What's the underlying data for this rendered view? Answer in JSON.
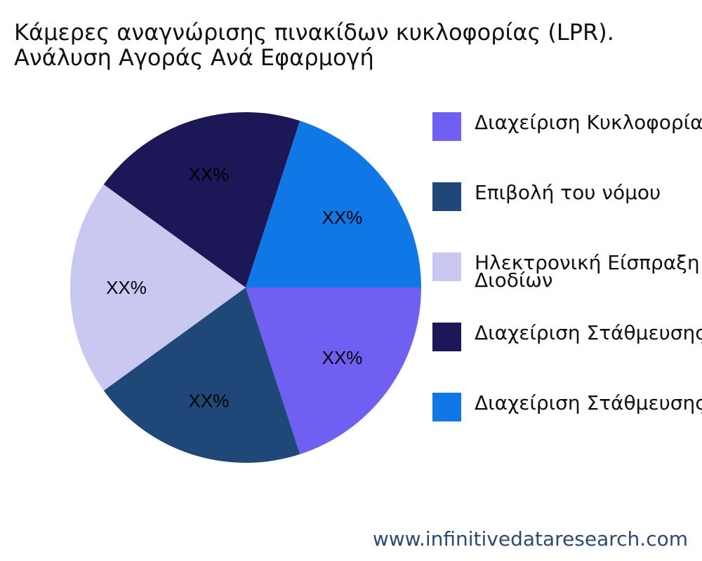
{
  "chart_data": {
    "type": "pie",
    "title": "Κάμερες αναγνώρισης πινακίδων κυκλοφορίας (LPR). Ανάλυση Αγοράς Ανά Εφαρμογή",
    "title_lines": [
      "Κάμερες αναγνώρισης πινακίδων κυκλοφορίας (LPR).",
      "Ανάλυση Αγοράς Ανά Εφαρμογή"
    ],
    "categories": [
      "Διαχείριση Κυκλοφορίας",
      "Επιβολή του νόμου",
      "Ηλεκτρονική Είσπραξη Διοδίων",
      "Διαχείριση Στάθμευσης",
      "Διαχείριση Στάθμευσης"
    ],
    "values": [
      20,
      20,
      20,
      20,
      20
    ],
    "slice_labels": [
      "XX%",
      "XX%",
      "XX%",
      "XX%",
      "XX%"
    ],
    "colors": [
      "#7060f2",
      "#1f4878",
      "#c9c8f0",
      "#1c1858",
      "#0f78e6"
    ],
    "legend": {
      "position": "right",
      "items": [
        {
          "label_lines": [
            "Διαχείριση Κυκλοφορίας"
          ]
        },
        {
          "label_lines": [
            "Επιβολή του νόμου"
          ]
        },
        {
          "label_lines": [
            "Ηλεκτρονική Είσπραξη",
            "Διοδίων"
          ]
        },
        {
          "label_lines": [
            "Διαχείριση Στάθμευσης"
          ]
        },
        {
          "label_lines": [
            "Διαχείριση Στάθμευσης"
          ]
        }
      ]
    },
    "start_angle_deg": 0,
    "direction": "clockwise"
  },
  "watermark": "www.infinitivedataresearch.com"
}
